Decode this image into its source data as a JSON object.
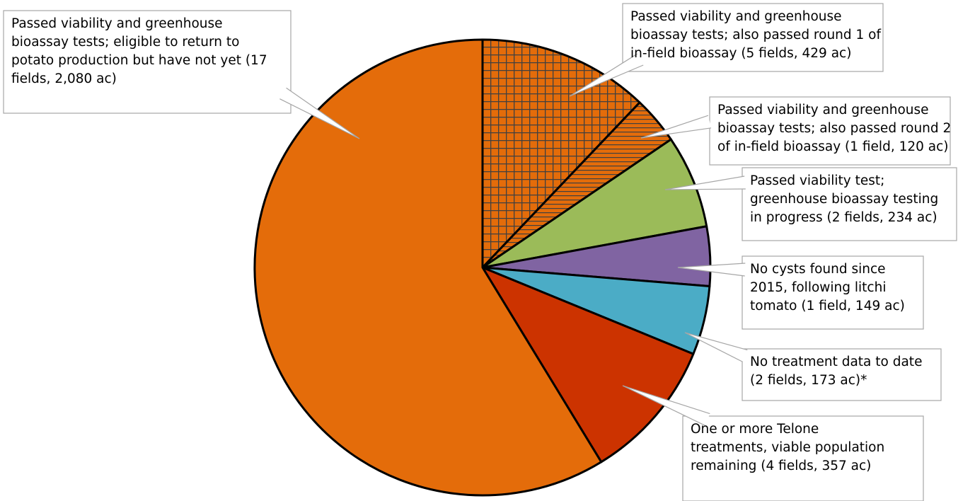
{
  "chart_data": {
    "type": "pie",
    "title": "",
    "start_angle_deg": 0,
    "direction": "clockwise",
    "slices": [
      {
        "label": "Passed viability and greenhouse bioassay tests; also passed round 1 of in-field bioassay (5 fields, 429 ac)",
        "label_lines": [
          "Passed viability and greenhouse",
          "bioassay tests; also passed round 1 of",
          "in-field bioassay (5 fields, 429 ac)"
        ],
        "value": 429,
        "color": "#E46C0A",
        "pattern": "grid"
      },
      {
        "label": "Passed viability and greenhouse bioassay tests; also passed round 2 of in-field bioassay (1 field, 120 ac)",
        "label_lines": [
          "Passed viability and greenhouse",
          "bioassay tests; also passed round 2",
          "of in-field bioassay (1 field, 120 ac)"
        ],
        "value": 120,
        "color": "#E46C0A",
        "pattern": "horizontal"
      },
      {
        "label": "Passed viability test; greenhouse bioassay testing in progress (2 fields, 234 ac)",
        "label_lines": [
          "Passed viability test;",
          "greenhouse bioassay testing",
          "in progress (2 fields, 234 ac)"
        ],
        "value": 234,
        "color": "#9BBB59",
        "pattern": "none"
      },
      {
        "label": "No cysts found since 2015, following litchi tomato (1 field, 149 ac)",
        "label_lines": [
          "No cysts found since",
          "2015, following litchi",
          "tomato (1 field, 149 ac)"
        ],
        "value": 149,
        "color": "#8064A2",
        "pattern": "none"
      },
      {
        "label": "No treatment data to date (2 fields, 173 ac)*",
        "label_lines": [
          "No treatment data to date",
          "(2 fields, 173 ac)*"
        ],
        "value": 173,
        "color": "#4BACC6",
        "pattern": "none"
      },
      {
        "label": "One or more Telone treatments, viable population remaining (4 fields, 357 ac)",
        "label_lines": [
          "One or more Telone",
          "treatments, viable population",
          "remaining (4 fields, 357 ac)"
        ],
        "value": 357,
        "color": "#CC3300",
        "pattern": "none"
      },
      {
        "label": "Passed viability and greenhouse bioassay tests; eligible to return to potato production but have not yet (17 fields, 2,080 ac)",
        "label_lines": [
          "Passed viability and greenhouse",
          "bioassay tests; eligible to return to",
          "potato production but have not yet (17",
          "fields, 2,080 ac)"
        ],
        "value": 2080,
        "color": "#E46C0A",
        "pattern": "none"
      }
    ],
    "legend": "none"
  }
}
